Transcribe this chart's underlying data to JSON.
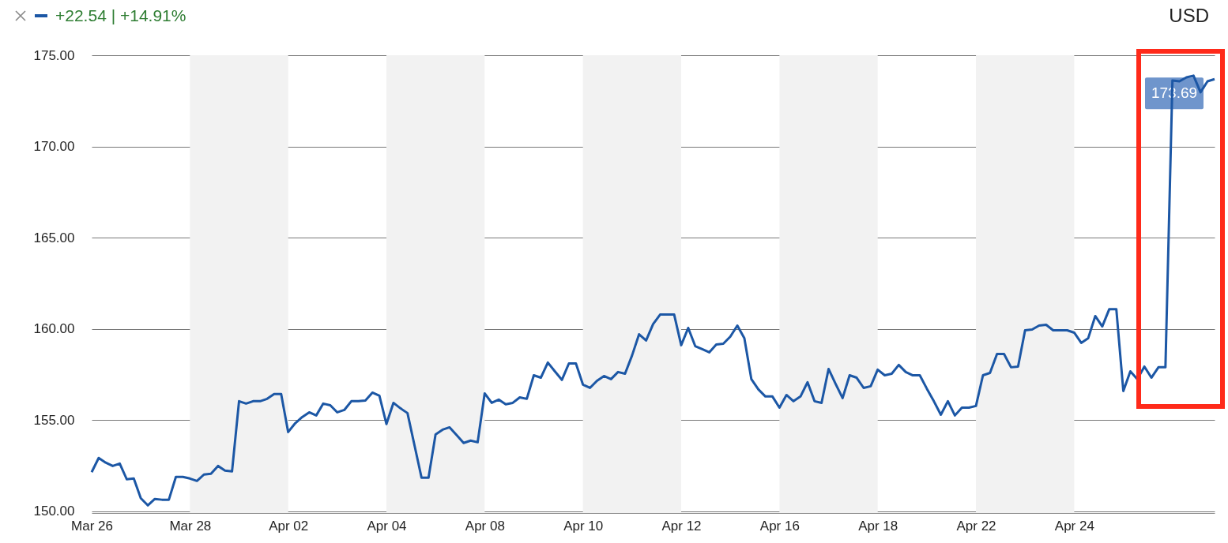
{
  "chart_data": {
    "type": "line",
    "ylabel": "USD",
    "annotations": [
      "+22.54 | +14.91%",
      {
        "text": "173.69",
        "y": 173.69
      }
    ],
    "categories": [
      "Mar 26",
      null,
      null,
      null,
      null,
      null,
      null,
      null,
      null,
      null,
      null,
      null,
      null,
      null,
      "Mar 28",
      null,
      null,
      null,
      null,
      null,
      null,
      null,
      null,
      null,
      null,
      null,
      null,
      null,
      "Apr 02",
      null,
      null,
      null,
      null,
      null,
      null,
      null,
      null,
      null,
      null,
      null,
      null,
      null,
      "Apr 04",
      null,
      null,
      null,
      null,
      null,
      null,
      null,
      null,
      null,
      null,
      null,
      null,
      null,
      "Apr 08",
      null,
      null,
      null,
      null,
      null,
      null,
      null,
      null,
      null,
      null,
      null,
      null,
      null,
      "Apr 10",
      null,
      null,
      null,
      null,
      null,
      null,
      null,
      null,
      null,
      null,
      null,
      null,
      null,
      "Apr 12",
      null,
      null,
      null,
      null,
      null,
      null,
      null,
      null,
      null,
      null,
      null,
      null,
      null,
      "Apr 16",
      null,
      null,
      null,
      null,
      null,
      null,
      null,
      null,
      null,
      null,
      null,
      null,
      null,
      "Apr 18",
      null,
      null,
      null,
      null,
      null,
      null,
      null,
      null,
      null,
      null,
      null,
      null,
      null,
      "Apr 22",
      null,
      null,
      null,
      null,
      null,
      null,
      null,
      null,
      null,
      null,
      null,
      null,
      null,
      "Apr 24",
      null,
      null,
      null,
      null,
      null,
      null,
      null,
      null,
      null,
      null,
      null,
      null,
      null,
      null,
      null,
      null,
      null,
      null,
      null,
      null
    ],
    "ylim": [
      149.9,
      175
    ],
    "yticks": [
      {
        "value": 150,
        "label": "150.00"
      },
      {
        "value": 155,
        "label": "155.00"
      },
      {
        "value": 160,
        "label": "160.00"
      },
      {
        "value": 165,
        "label": "165.00"
      },
      {
        "value": 170,
        "label": "170.00"
      },
      {
        "value": 175,
        "label": "175.00"
      }
    ],
    "grid": "y",
    "line_style": "solid",
    "bands": [
      {
        "axis": "x",
        "from": "Mar 28",
        "to": "Apr 02",
        "color": "#f2f2f2"
      },
      {
        "axis": "x",
        "from": "Apr 04",
        "to": "Apr 08",
        "color": "#f2f2f2"
      },
      {
        "axis": "x",
        "from": "Apr 10",
        "to": "Apr 12",
        "color": "#f2f2f2"
      },
      {
        "axis": "x",
        "from": "Apr 16",
        "to": "Apr 18",
        "color": "#f2f2f2"
      },
      {
        "axis": "x",
        "from": "Apr 22",
        "to": "Apr 24",
        "color": "#f2f2f2"
      }
    ],
    "series": [
      {
        "color": "#1c57a5",
        "values": [
          152.14,
          152.92,
          152.66,
          152.48,
          152.61,
          151.75,
          151.79,
          150.71,
          150.32,
          150.67,
          150.63,
          150.63,
          151.88,
          151.88,
          151.79,
          151.66,
          152.01,
          152.05,
          152.48,
          152.23,
          152.18,
          156.03,
          155.9,
          156.03,
          156.03,
          156.16,
          156.42,
          156.42,
          154.34,
          154.82,
          155.16,
          155.42,
          155.25,
          155.9,
          155.81,
          155.42,
          155.55,
          156.03,
          156.03,
          156.07,
          156.5,
          156.33,
          154.78,
          155.94,
          155.64,
          155.38,
          153.61,
          151.84,
          151.84,
          154.21,
          154.47,
          154.6,
          154.17,
          153.74,
          153.87,
          153.78,
          156.46,
          155.94,
          156.12,
          155.86,
          155.94,
          156.24,
          156.16,
          157.45,
          157.32,
          158.15,
          157.67,
          157.2,
          158.1,
          158.1,
          156.94,
          156.76,
          157.15,
          157.41,
          157.24,
          157.63,
          157.54,
          158.54,
          159.7,
          159.36,
          160.26,
          160.78,
          160.78,
          160.78,
          159.1,
          160.05,
          159.05,
          158.88,
          158.71,
          159.14,
          159.18,
          159.57,
          160.18,
          159.49,
          157.24,
          156.68,
          156.29,
          156.29,
          155.68,
          156.37,
          156.03,
          156.29,
          157.07,
          156.03,
          155.94,
          157.8,
          156.98,
          156.2,
          157.45,
          157.32,
          156.76,
          156.85,
          157.76,
          157.45,
          157.54,
          158.02,
          157.63,
          157.45,
          157.45,
          156.72,
          156.03,
          155.29,
          156.03,
          155.25,
          155.68,
          155.68,
          155.77,
          157.45,
          157.58,
          158.62,
          158.62,
          157.89,
          157.93,
          159.92,
          159.96,
          160.18,
          160.22,
          159.92,
          159.92,
          159.92,
          159.79,
          159.23,
          159.49,
          160.7,
          160.13,
          161.08,
          161.08,
          156.59,
          157.67,
          157.24,
          157.93,
          157.32,
          157.89,
          157.89,
          173.62,
          173.57,
          173.79,
          173.88,
          172.97,
          173.57,
          173.69
        ]
      }
    ]
  }
}
